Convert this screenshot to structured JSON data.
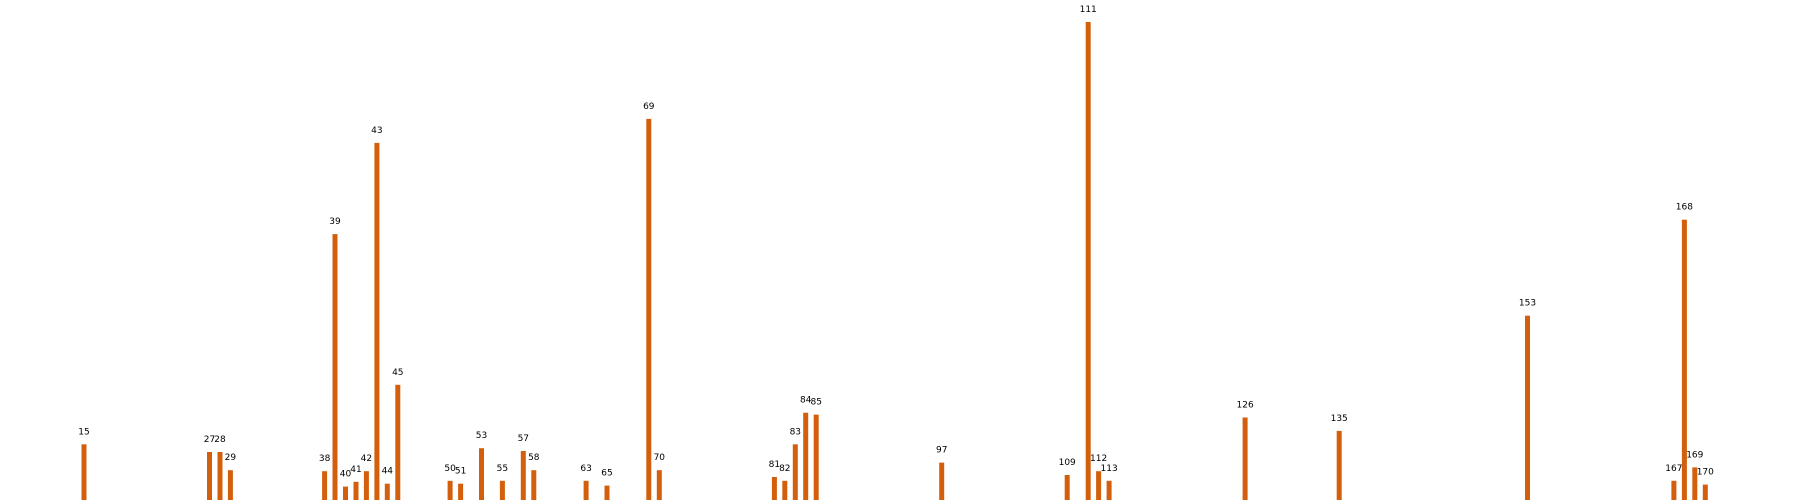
{
  "chart_data": {
    "type": "bar",
    "grid": false,
    "legend": "none",
    "xlim": [
      7,
      177
    ],
    "ylim": [
      0,
      480
    ],
    "bar_color": "#d35f0d",
    "points": [
      {
        "x": 15,
        "y": 58,
        "label": "15"
      },
      {
        "x": 27,
        "y": 50,
        "label": "27"
      },
      {
        "x": 28,
        "y": 50,
        "label": "28"
      },
      {
        "x": 29,
        "y": 31,
        "label": "29"
      },
      {
        "x": 38,
        "y": 30,
        "label": "38"
      },
      {
        "x": 39,
        "y": 277,
        "label": "39"
      },
      {
        "x": 40,
        "y": 14,
        "label": "40"
      },
      {
        "x": 41,
        "y": 19,
        "label": "41"
      },
      {
        "x": 42,
        "y": 30,
        "label": "42"
      },
      {
        "x": 43,
        "y": 372,
        "label": "43"
      },
      {
        "x": 44,
        "y": 17,
        "label": "44"
      },
      {
        "x": 45,
        "y": 120,
        "label": "45"
      },
      {
        "x": 50,
        "y": 20,
        "label": "50"
      },
      {
        "x": 51,
        "y": 17,
        "label": "51"
      },
      {
        "x": 53,
        "y": 54,
        "label": "53"
      },
      {
        "x": 55,
        "y": 20,
        "label": "55"
      },
      {
        "x": 57,
        "y": 51,
        "label": "57"
      },
      {
        "x": 58,
        "y": 31,
        "label": "58"
      },
      {
        "x": 63,
        "y": 20,
        "label": "63"
      },
      {
        "x": 65,
        "y": 15,
        "label": "65"
      },
      {
        "x": 69,
        "y": 397,
        "label": "69"
      },
      {
        "x": 70,
        "y": 31,
        "label": "70"
      },
      {
        "x": 81,
        "y": 24,
        "label": "81"
      },
      {
        "x": 82,
        "y": 20,
        "label": "82"
      },
      {
        "x": 83,
        "y": 58,
        "label": "83"
      },
      {
        "x": 84,
        "y": 91,
        "label": "84"
      },
      {
        "x": 85,
        "y": 89,
        "label": "85"
      },
      {
        "x": 97,
        "y": 39,
        "label": "97"
      },
      {
        "x": 109,
        "y": 26,
        "label": "109"
      },
      {
        "x": 111,
        "y": 498,
        "label": "111"
      },
      {
        "x": 112,
        "y": 30,
        "label": "112"
      },
      {
        "x": 113,
        "y": 20,
        "label": "113"
      },
      {
        "x": 126,
        "y": 86,
        "label": "126"
      },
      {
        "x": 135,
        "y": 72,
        "label": "135"
      },
      {
        "x": 153,
        "y": 192,
        "label": "153"
      },
      {
        "x": 167,
        "y": 20,
        "label": "167"
      },
      {
        "x": 168,
        "y": 292,
        "label": "168"
      },
      {
        "x": 169,
        "y": 34,
        "label": "169"
      },
      {
        "x": 170,
        "y": 16,
        "label": "170"
      }
    ]
  }
}
